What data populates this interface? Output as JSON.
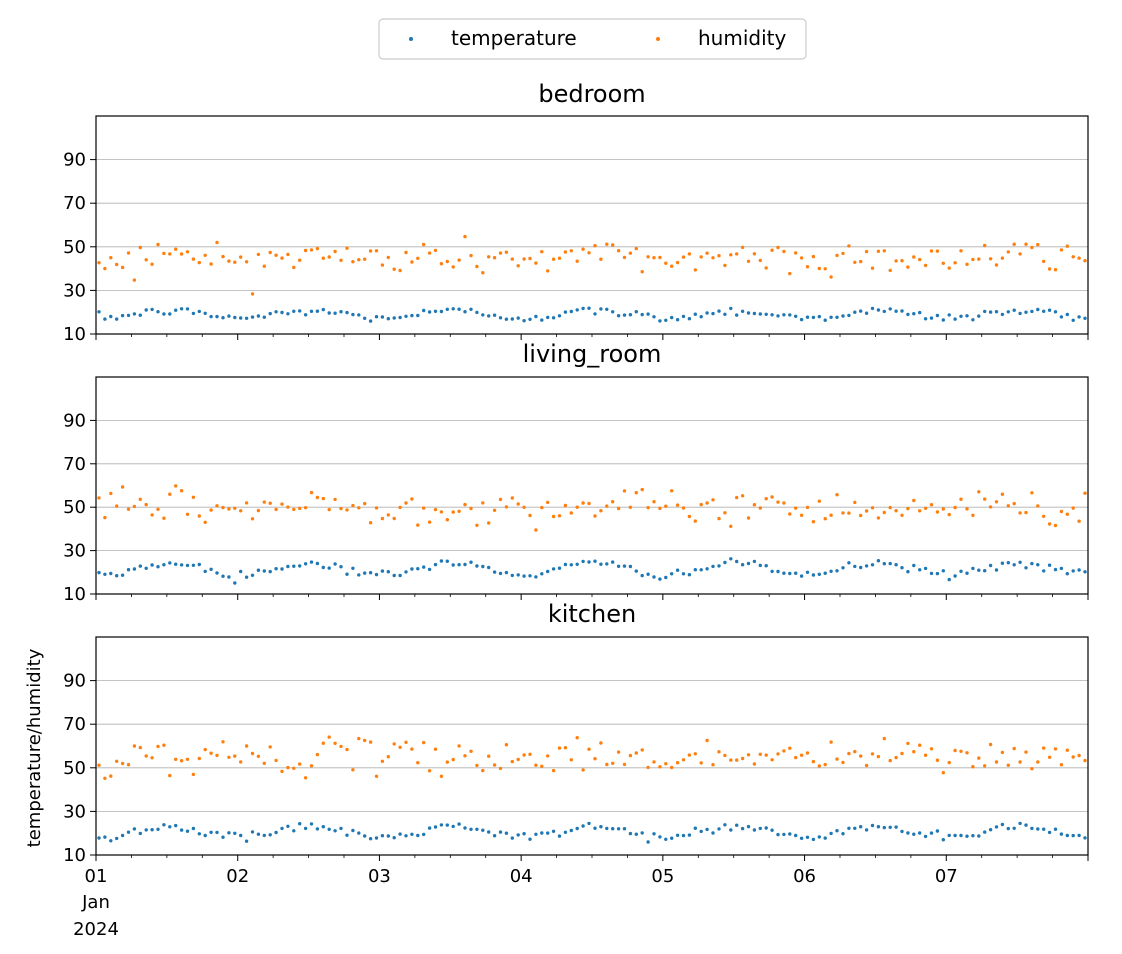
{
  "chart_data": {
    "type": "scatter",
    "ylabel": "temperature/humidity",
    "ylim": [
      10,
      110
    ],
    "yticks": [
      10,
      30,
      50,
      70,
      90
    ],
    "xlim": [
      "2024-01-01",
      "2024-01-08"
    ],
    "x_tick_labels": [
      "01",
      "02",
      "03",
      "04",
      "05",
      "06",
      "07"
    ],
    "x_tick_sublabels": [
      "Jan",
      "2024"
    ],
    "grid": "y-major",
    "legend": {
      "placement": "top-center",
      "entries": [
        {
          "name": "temperature",
          "color": "#1f77b4"
        },
        {
          "name": "humidity",
          "color": "#ff7f0e"
        }
      ]
    },
    "sampling": "hourly, 2024-01-01 00:00 to 2024-01-07 23:00",
    "panels": [
      {
        "title": "bedroom",
        "series": [
          {
            "name": "temperature",
            "color": "#1f77b4",
            "mean": 19,
            "daily_amplitude": 1.5,
            "noise": 1.2
          },
          {
            "name": "humidity",
            "color": "#ff7f0e",
            "mean": 45,
            "daily_amplitude": 0.5,
            "noise": 5
          }
        ]
      },
      {
        "title": "living_room",
        "series": [
          {
            "name": "temperature",
            "color": "#1f77b4",
            "mean": 21.5,
            "daily_amplitude": 2.5,
            "noise": 1.2
          },
          {
            "name": "humidity",
            "color": "#ff7f0e",
            "mean": 50,
            "daily_amplitude": 0.5,
            "noise": 5
          }
        ]
      },
      {
        "title": "kitchen",
        "series": [
          {
            "name": "temperature",
            "color": "#1f77b4",
            "mean": 20.5,
            "daily_amplitude": 2.5,
            "noise": 1.2
          },
          {
            "name": "humidity",
            "color": "#ff7f0e",
            "mean": 55,
            "daily_amplitude": 0.5,
            "noise": 5
          }
        ]
      }
    ]
  }
}
